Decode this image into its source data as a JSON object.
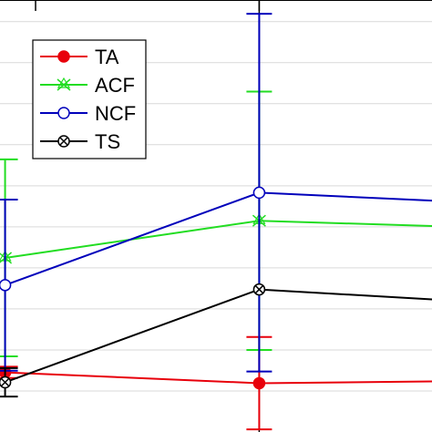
{
  "chart_data": {
    "type": "line",
    "x": [
      1,
      2,
      3
    ],
    "xlim": [
      0.98,
      2.68
    ],
    "ylim": [
      0,
      1
    ],
    "grid": true,
    "legend_position": "top-left",
    "series": [
      {
        "name": "TA",
        "color": "#e8000b",
        "marker": "filled-circle",
        "values": [
          0.138,
          0.113,
          0.119
        ],
        "err": [
          0.013,
          0.107,
          0.0
        ]
      },
      {
        "name": "ACF",
        "color": "#22dd22",
        "marker": "x-star",
        "values": [
          0.403,
          0.489,
          0.471
        ],
        "err": [
          0.228,
          0.299,
          0.0
        ]
      },
      {
        "name": "NCF",
        "color": "#0000bb",
        "marker": "open-circle",
        "values": [
          0.34,
          0.554,
          0.527
        ],
        "err": [
          0.198,
          0.414,
          0.0
        ]
      },
      {
        "name": "TS",
        "color": "#000000",
        "marker": "circle-x",
        "values": [
          0.115,
          0.33,
          0.296
        ],
        "err": [
          0.033,
          0.0,
          0.0
        ]
      }
    ]
  }
}
